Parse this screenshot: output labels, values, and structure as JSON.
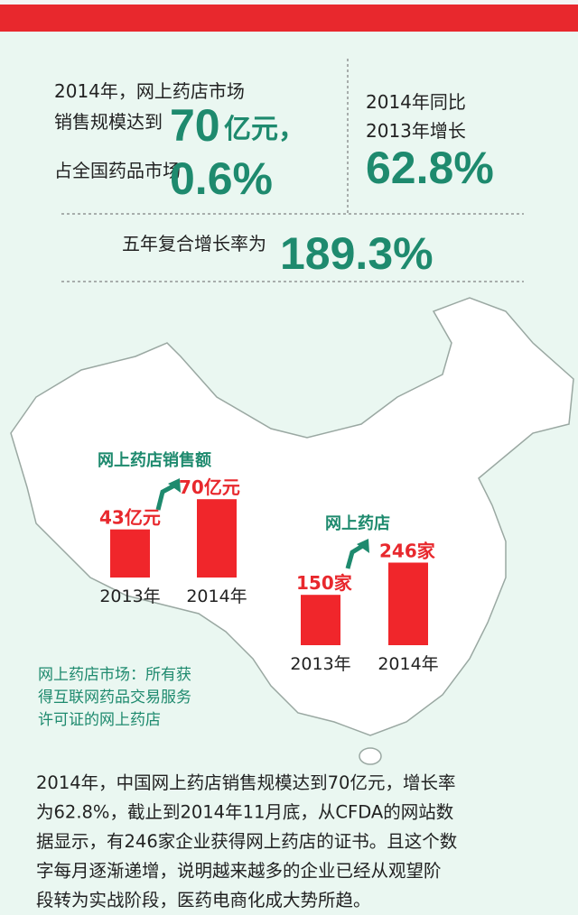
{
  "stats": {
    "s1_line1": "2014年，网上药店市场",
    "s1_line2": "销售规模达到",
    "s1_big1": "70",
    "s1_unit1": "亿元，",
    "s1_line3": "占全国药品市场",
    "s1_big2": "0.6%",
    "s2_line1": "2014年同比",
    "s2_line2": "2013年增长",
    "s2_big": "62.8%",
    "s3_line": "五年复合增长率为",
    "s3_big": "189.3%"
  },
  "chart_data": [
    {
      "type": "bar",
      "title": "网上药店销售额",
      "categories": [
        "2013年",
        "2014年"
      ],
      "values": [
        43,
        70
      ],
      "value_labels": [
        "43亿元",
        "70亿元"
      ],
      "color": "#f0262b"
    },
    {
      "type": "bar",
      "title": "网上药店",
      "categories": [
        "2013年",
        "2014年"
      ],
      "values": [
        150,
        246
      ],
      "value_labels": [
        "150家",
        "246家"
      ],
      "color": "#f0262b"
    }
  ],
  "note": [
    "网上药店市场：所有获",
    "得互联网药品交易服务",
    "许可证的网上药店"
  ],
  "paragraph": [
    "2014年，中国网上药店销售规模达到70亿元，增长率",
    "为62.8%，截止到2014年11月底，从CFDA的网站数",
    "据显示，有246家企业获得网上药店的证书。且这个数",
    "字每月逐渐递增，说明越来越多的企业已经从观望阶",
    "段转为实战阶段，医药电商化成大势所趋。"
  ]
}
